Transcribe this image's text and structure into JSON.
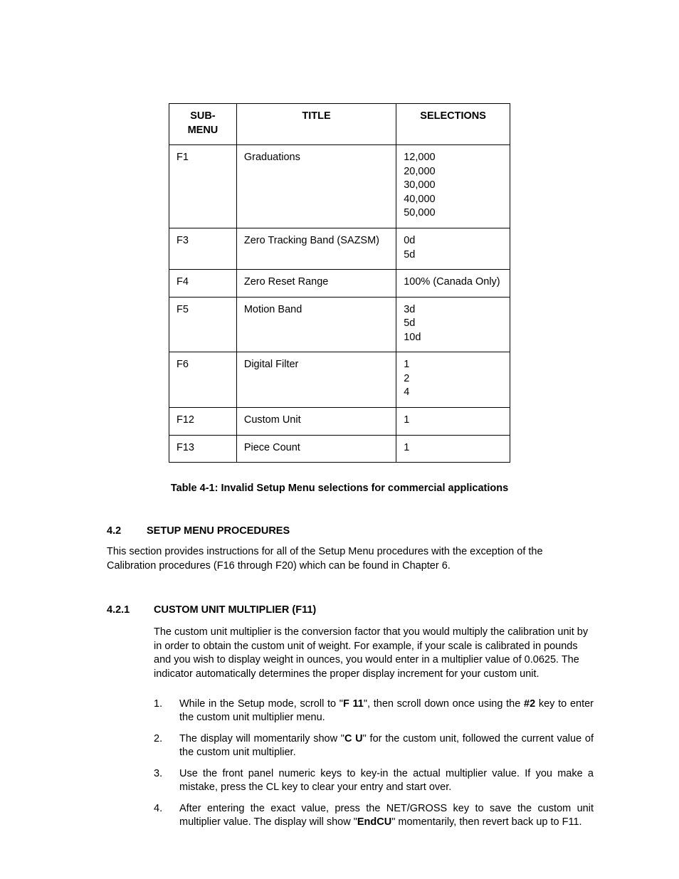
{
  "table": {
    "headers": {
      "c1": "SUB-MENU",
      "c2": "TITLE",
      "c3": "SELECTIONS"
    },
    "rows": [
      {
        "sub": "F1",
        "title": "Graduations",
        "sel": "12,000\n20,000\n30,000\n40,000\n50,000"
      },
      {
        "sub": "F3",
        "title": "Zero Tracking Band (SAZSM)",
        "sel": "0d\n5d"
      },
      {
        "sub": "F4",
        "title": "Zero Reset Range",
        "sel": "100% (Canada Only)"
      },
      {
        "sub": "F5",
        "title": "Motion Band",
        "sel": "3d\n5d\n10d"
      },
      {
        "sub": "F6",
        "title": "Digital Filter",
        "sel": "1\n2\n4"
      },
      {
        "sub": "F12",
        "title": "Custom Unit",
        "sel": "1"
      },
      {
        "sub": "F13",
        "title": "Piece Count",
        "sel": "1"
      }
    ]
  },
  "caption": "Table 4-1: Invalid Setup Menu selections for commercial applications",
  "sec": {
    "num": "4.2",
    "title": "SETUP MENU PROCEDURES",
    "body": "This section provides instructions for all of the Setup Menu procedures with the exception of the Calibration procedures (F16 through F20) which can be found in Chapter 6."
  },
  "subsec": {
    "num": "4.2.1",
    "title": "CUSTOM UNIT MULTIPLIER (F11)",
    "body": "The custom unit multiplier is the conversion factor that you would multiply the calibration unit by in order to obtain the custom unit of weight. For example, if your scale is calibrated in pounds and you wish to display weight in ounces, you would enter in a multiplier value of 0.0625. The indicator automatically determines the proper display increment for your custom unit."
  },
  "steps": [
    {
      "n": "1.",
      "pre": "While in the Setup mode, scroll to \"",
      "b1": "F 11",
      "mid": "\", then scroll down once using the ",
      "b2": "#2",
      "post": " key to enter the custom unit multiplier menu."
    },
    {
      "n": "2.",
      "pre": "The display will momentarily show \"",
      "b1": "C U",
      "mid": "\" for the custom unit, followed the current value of the custom unit multiplier.",
      "b2": "",
      "post": ""
    },
    {
      "n": "3.",
      "pre": "Use the front panel numeric keys to key-in the actual multiplier value. If you make a mistake, press the CL key to clear your entry and start over.",
      "b1": "",
      "mid": "",
      "b2": "",
      "post": ""
    },
    {
      "n": "4.",
      "pre": "After entering the exact value, press the NET/GROSS key to save the custom unit multiplier value. The display will show \"",
      "b1": "EndCU",
      "mid": "\" momentarily, then revert back up to F11.",
      "b2": "",
      "post": ""
    }
  ]
}
